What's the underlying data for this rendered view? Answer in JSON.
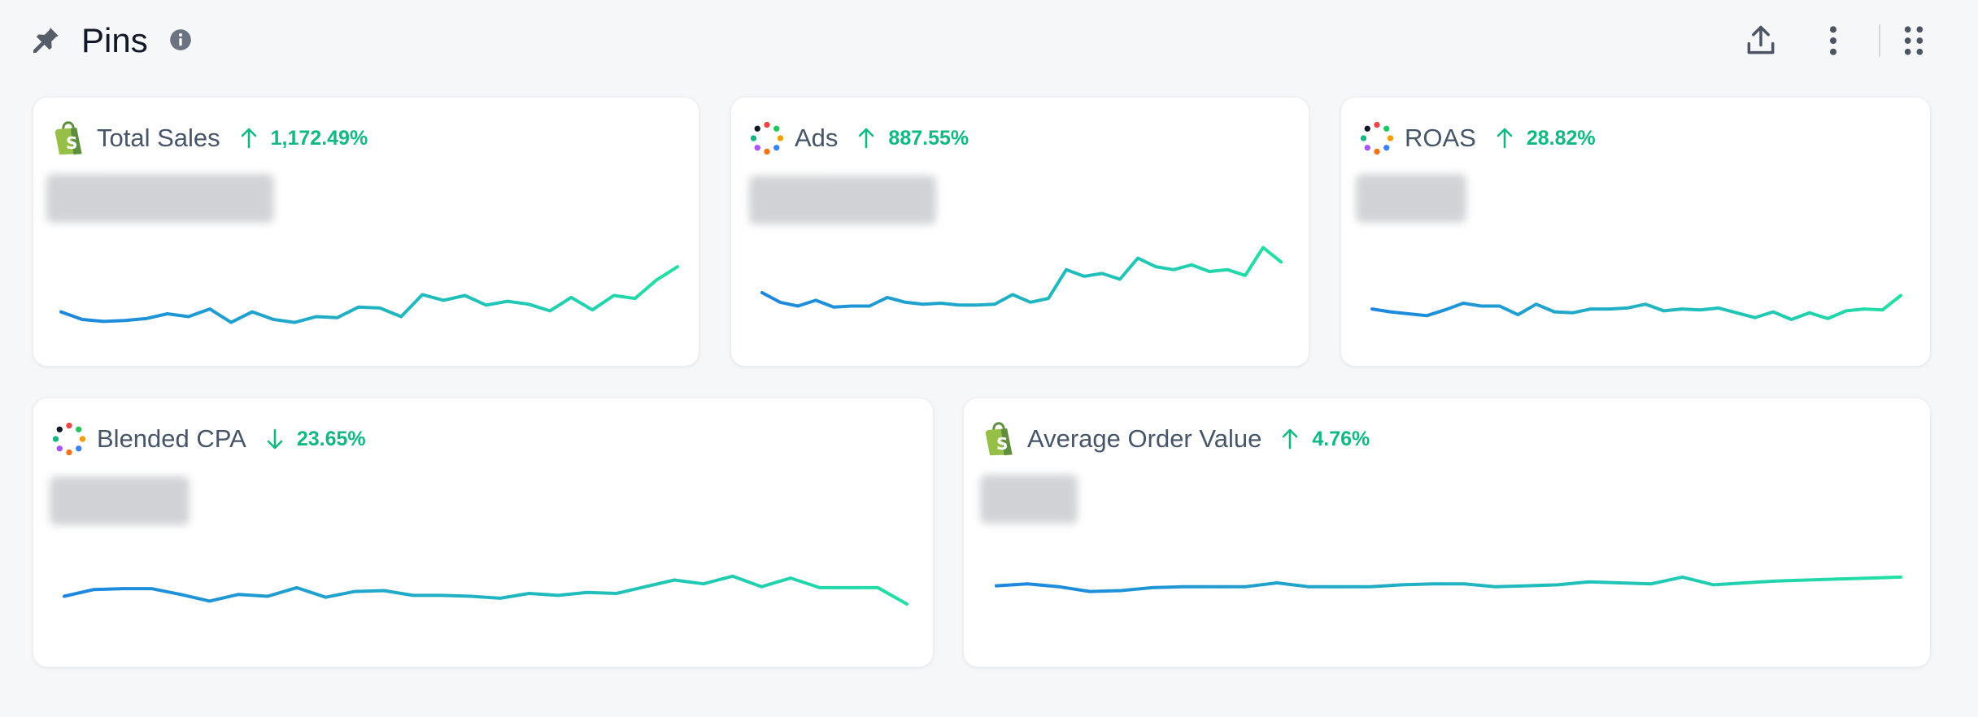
{
  "header": {
    "title": "Pins",
    "icons": {
      "pin": "pin-icon",
      "info": "info-icon",
      "share": "share-upload-icon",
      "more": "more-vertical-icon",
      "apps": "grid-apps-icon"
    }
  },
  "colors": {
    "accent_green": "#10b981",
    "line_start": "#1e86e0",
    "line_end": "#22e0a4",
    "card_bg": "#ffffff",
    "page_bg": "#f6f7f9"
  },
  "cards": [
    {
      "name": "Total Sales",
      "source_icon": "shopify-bag-icon",
      "delta": "1,172.49%",
      "direction": "up",
      "sparkline": [
        30,
        22,
        20,
        21,
        23,
        28,
        25,
        33,
        19,
        30,
        22,
        19,
        25,
        24,
        35,
        34,
        25,
        48,
        42,
        47,
        37,
        41,
        38,
        31,
        45,
        32,
        47,
        44,
        63,
        77
      ]
    },
    {
      "name": "Ads",
      "source_icon": "dots-circle-icon",
      "delta": "887.55%",
      "direction": "up",
      "sparkline": [
        50,
        40,
        36,
        42,
        35,
        36,
        36,
        45,
        40,
        38,
        39,
        37,
        37,
        38,
        48,
        40,
        44,
        74,
        67,
        70,
        64,
        86,
        77,
        74,
        79,
        72,
        74,
        68,
        97,
        82
      ]
    },
    {
      "name": "ROAS",
      "source_icon": "dots-circle-icon",
      "delta": "28.82%",
      "direction": "up",
      "sparkline": [
        33,
        30,
        28,
        26,
        32,
        39,
        36,
        36,
        27,
        38,
        30,
        29,
        33,
        33,
        34,
        38,
        31,
        33,
        32,
        34,
        29,
        24,
        30,
        22,
        29,
        23,
        31,
        33,
        32,
        47
      ]
    },
    {
      "name": "Blended CPA",
      "source_icon": "dots-circle-icon",
      "delta": "23.65%",
      "direction": "down",
      "sparkline": [
        47,
        54,
        55,
        55,
        49,
        42,
        49,
        47,
        56,
        46,
        52,
        53,
        48,
        48,
        47,
        45,
        50,
        48,
        51,
        50,
        57,
        64,
        60,
        68,
        57,
        66,
        56,
        56,
        56,
        39
      ]
    },
    {
      "name": "Average Order Value",
      "source_icon": "shopify-bag-icon",
      "delta": "4.76%",
      "direction": "up",
      "sparkline": [
        58,
        60,
        57,
        52,
        53,
        56,
        57,
        57,
        57,
        61,
        57,
        57,
        57,
        59,
        60,
        60,
        57,
        58,
        59,
        62,
        61,
        60,
        67,
        59,
        61,
        63,
        64,
        65,
        66,
        67
      ]
    }
  ]
}
